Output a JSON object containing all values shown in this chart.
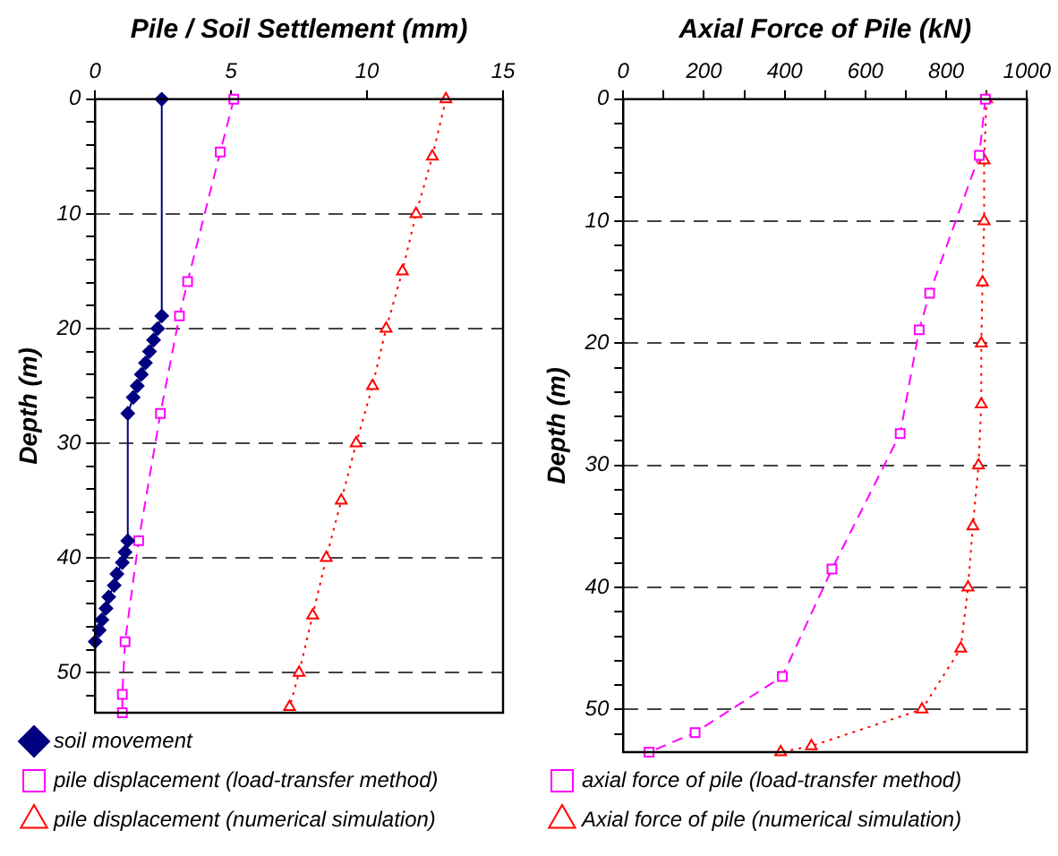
{
  "chart_data": [
    {
      "type": "line",
      "xlabel": "Pile / Soil Settlement (mm)",
      "ylabel": "Depth (m)",
      "xlim": [
        0,
        15
      ],
      "xticks": [
        0,
        5,
        10,
        15
      ],
      "ylim": [
        53.5,
        0
      ],
      "yticks": [
        0,
        {
          "value": 2,
          "label": null
        },
        {
          "value": 4,
          "label": null
        },
        {
          "value": 6,
          "label": null
        },
        {
          "value": 8,
          "label": null
        },
        10,
        {
          "value": 12,
          "label": null
        },
        {
          "value": 14,
          "label": null
        },
        {
          "value": 16,
          "label": null
        },
        {
          "value": 18,
          "label": null
        },
        20,
        {
          "value": 22,
          "label": null
        },
        {
          "value": 24,
          "label": null
        },
        {
          "value": 26,
          "label": null
        },
        {
          "value": 28,
          "label": null
        },
        30,
        {
          "value": 32,
          "label": null
        },
        {
          "value": 34,
          "label": null
        },
        {
          "value": 36,
          "label": null
        },
        {
          "value": 38,
          "label": null
        },
        40,
        {
          "value": 42,
          "label": null
        },
        {
          "value": 44,
          "label": null
        },
        {
          "value": 46,
          "label": null
        },
        {
          "value": 48,
          "label": null
        },
        50,
        {
          "value": 52,
          "label": null
        }
      ],
      "grid": "y",
      "legend": "bottom",
      "series": [
        {
          "name": "soil movement",
          "color": "#000080",
          "marker": "diamond",
          "line_style": "solid",
          "x": [
            2.45,
            2.45,
            2.3,
            2.15,
            2.0,
            1.85,
            1.7,
            1.55,
            1.4,
            1.2,
            1.2,
            1.1,
            1.0,
            0.8,
            0.7,
            0.5,
            0.4,
            0.25,
            0.15,
            0.0
          ],
          "values": [
            0,
            18.9,
            20,
            21,
            22,
            23,
            24,
            25,
            26,
            27.4,
            38.5,
            39.5,
            40.4,
            41.4,
            42.4,
            43.4,
            44.4,
            45.4,
            46.3,
            47.3
          ]
        },
        {
          "name": "pile displacement (load-transfer method)",
          "color": "#ff00ff",
          "marker": "square",
          "line_style": "dashed",
          "x": [
            5.1,
            4.6,
            3.4,
            3.1,
            2.4,
            1.6,
            1.1,
            1.0,
            1.0
          ],
          "values": [
            0,
            4.6,
            15.9,
            18.9,
            27.4,
            38.5,
            47.3,
            51.9,
            53.5
          ]
        },
        {
          "name": "pile displacement (numerical simulation)",
          "color": "#ff0000",
          "marker": "triangle",
          "line_style": "dotted",
          "x": [
            12.9,
            12.4,
            11.8,
            11.3,
            10.7,
            10.2,
            9.6,
            9.05,
            8.5,
            8.0,
            7.5,
            7.15
          ],
          "values": [
            0,
            5,
            10,
            15,
            20,
            25,
            30,
            35,
            40,
            45,
            50,
            53
          ]
        }
      ]
    },
    {
      "type": "line",
      "xlabel": "Axial Force of Pile (kN)",
      "ylabel": "Depth (m)",
      "xlim": [
        0,
        1000
      ],
      "xticks": [
        0,
        {
          "value": 100,
          "label": null
        },
        200,
        {
          "value": 300,
          "label": null
        },
        400,
        {
          "value": 500,
          "label": null
        },
        600,
        {
          "value": 700,
          "label": null
        },
        800,
        {
          "value": 900,
          "label": null
        },
        1000
      ],
      "ylim": [
        53.5,
        0
      ],
      "yticks": [
        0,
        {
          "value": 2,
          "label": null
        },
        {
          "value": 4,
          "label": null
        },
        {
          "value": 6,
          "label": null
        },
        {
          "value": 8,
          "label": null
        },
        10,
        {
          "value": 12,
          "label": null
        },
        {
          "value": 14,
          "label": null
        },
        {
          "value": 16,
          "label": null
        },
        {
          "value": 18,
          "label": null
        },
        20,
        {
          "value": 22,
          "label": null
        },
        {
          "value": 24,
          "label": null
        },
        {
          "value": 26,
          "label": null
        },
        {
          "value": 28,
          "label": null
        },
        30,
        {
          "value": 32,
          "label": null
        },
        {
          "value": 34,
          "label": null
        },
        {
          "value": 36,
          "label": null
        },
        {
          "value": 38,
          "label": null
        },
        40,
        {
          "value": 42,
          "label": null
        },
        {
          "value": 44,
          "label": null
        },
        {
          "value": 46,
          "label": null
        },
        {
          "value": 48,
          "label": null
        },
        50,
        {
          "value": 52,
          "label": null
        }
      ],
      "grid": "y",
      "legend": "bottom",
      "series": [
        {
          "name": "axial force of pile (load-transfer method)",
          "color": "#ff00ff",
          "marker": "square",
          "line_style": "dashed",
          "x": [
            897,
            882,
            759,
            733,
            686,
            517,
            394,
            178,
            64
          ],
          "values": [
            0,
            4.6,
            15.9,
            18.9,
            27.4,
            38.5,
            47.3,
            51.9,
            53.5
          ]
        },
        {
          "name": "Axial force of pile (numerical simulation)",
          "color": "#ff0000",
          "marker": "triangle",
          "line_style": "dotted",
          "x": [
            900,
            894,
            894,
            890,
            887,
            887,
            880,
            866,
            854,
            836,
            740,
            466,
            390
          ],
          "values": [
            0,
            5,
            10,
            15,
            20,
            25,
            30,
            35,
            40,
            45,
            50,
            53,
            53.5
          ]
        }
      ]
    }
  ]
}
